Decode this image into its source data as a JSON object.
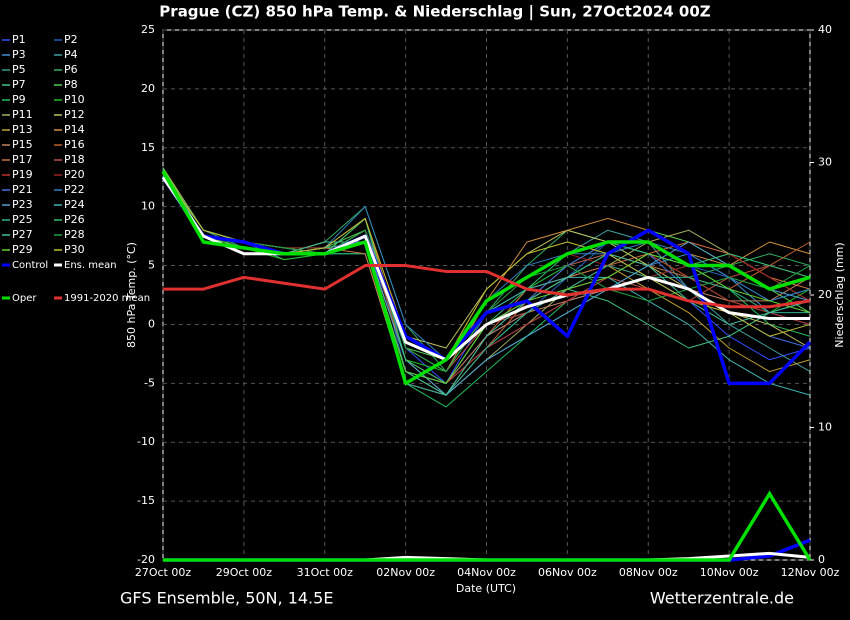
{
  "chart_data": {
    "type": "line",
    "title": "Prague  (CZ)  850 hPa Temp. & Niederschlag | Sun, 27Oct2024 00Z",
    "ylabel": "850 hPa Temp. (°C)",
    "y2label": "Niederschlag (mm)",
    "xlabel": "Date (UTC)",
    "source_left": "GFS Ensemble, 50N, 14.5E",
    "source_right": "Wetterzentrale.de",
    "grid": true,
    "xlim": [
      0,
      16
    ],
    "xticks": [
      {
        "value": 0,
        "label": "27Oct 00z"
      },
      {
        "value": 2,
        "label": "29Oct 00z"
      },
      {
        "value": 4,
        "label": "31Oct 00z"
      },
      {
        "value": 6,
        "label": "02Nov 00z"
      },
      {
        "value": 8,
        "label": "04Nov 00z"
      },
      {
        "value": 10,
        "label": "06Nov 00z"
      },
      {
        "value": 12,
        "label": "08Nov 00z"
      },
      {
        "value": 14,
        "label": "10Nov 00z"
      },
      {
        "value": 16,
        "label": "12Nov 00z"
      }
    ],
    "ylim": [
      -20,
      25
    ],
    "yticks": [
      -20,
      -15,
      -10,
      -5,
      0,
      5,
      10,
      15,
      20,
      25
    ],
    "y2lim": [
      0,
      40
    ],
    "y2ticks": [
      0,
      10,
      20,
      30,
      40
    ],
    "x": [
      0,
      1,
      2,
      3,
      4,
      5,
      6,
      7,
      8,
      9,
      10,
      11,
      12,
      13,
      14,
      15,
      16
    ],
    "series": [
      {
        "name": "P1",
        "color": "#3050ff",
        "values": [
          13,
          8,
          7,
          6,
          6,
          7,
          -2,
          -5,
          1,
          3,
          5,
          6,
          4,
          2,
          -1,
          -3,
          -2
        ]
      },
      {
        "name": "P2",
        "color": "#2060c0",
        "values": [
          12.5,
          7,
          6.5,
          6,
          6.5,
          9,
          -4,
          -5,
          -1,
          1,
          4,
          7,
          6,
          5,
          4,
          2,
          3
        ]
      },
      {
        "name": "P3",
        "color": "#3a8fd0",
        "values": [
          13,
          7.5,
          7,
          6.5,
          6,
          6,
          -5,
          -6,
          -2,
          0,
          2,
          3,
          5,
          6,
          4,
          1,
          0
        ]
      },
      {
        "name": "P4",
        "color": "#40a0a0",
        "values": [
          12.8,
          7,
          7,
          5.5,
          6,
          8,
          -1,
          -3,
          2,
          4,
          6,
          8,
          7,
          3,
          0,
          -2,
          -4
        ]
      },
      {
        "name": "P5",
        "color": "#30a090",
        "values": [
          13.2,
          8,
          6.5,
          6,
          6.5,
          7,
          -3,
          -6,
          -3,
          -1,
          1,
          3,
          4,
          5,
          6,
          5,
          4
        ]
      },
      {
        "name": "P6",
        "color": "#30b060",
        "values": [
          12.6,
          7,
          7,
          6,
          7,
          10,
          0,
          -4,
          1,
          5,
          8,
          7,
          5,
          4,
          5,
          6,
          5
        ]
      },
      {
        "name": "P7",
        "color": "#40c080",
        "values": [
          13,
          7.5,
          6.5,
          6,
          6,
          7,
          -4,
          -5,
          -2,
          1,
          3,
          2,
          0,
          -2,
          -1,
          1,
          2
        ]
      },
      {
        "name": "P8",
        "color": "#50d050",
        "values": [
          12.9,
          7,
          7,
          6.5,
          6.5,
          8,
          -2,
          -3,
          0,
          2,
          4,
          6,
          8,
          7,
          5,
          3,
          1
        ]
      },
      {
        "name": "P9",
        "color": "#20c060",
        "values": [
          13.1,
          8,
          7,
          6,
          6,
          6,
          -5,
          -7,
          -4,
          -1,
          2,
          4,
          6,
          5,
          3,
          0,
          -1
        ]
      },
      {
        "name": "P10",
        "color": "#20c020",
        "values": [
          13,
          7,
          6.5,
          5.5,
          6,
          9,
          -3,
          -4,
          1,
          3,
          5,
          7,
          6,
          4,
          2,
          1,
          3
        ]
      },
      {
        "name": "P11",
        "color": "#a0b060",
        "values": [
          12.7,
          7.5,
          7,
          6,
          6.5,
          7,
          -4,
          -6,
          -3,
          0,
          3,
          5,
          7,
          8,
          6,
          4,
          2
        ]
      },
      {
        "name": "P12",
        "color": "#c0c060",
        "values": [
          13.3,
          8,
          7,
          6.5,
          6,
          8,
          -1,
          -2,
          3,
          6,
          8,
          7,
          5,
          3,
          1,
          0,
          -2
        ]
      },
      {
        "name": "P13",
        "color": "#c0a030",
        "values": [
          13,
          7,
          7,
          6,
          7,
          7,
          -3,
          -5,
          0,
          2,
          4,
          5,
          3,
          1,
          -2,
          -4,
          -3
        ]
      },
      {
        "name": "P14",
        "color": "#d09040",
        "values": [
          12.8,
          7.5,
          6.5,
          6,
          6,
          9,
          -2,
          -4,
          2,
          7,
          8,
          9,
          8,
          6,
          5,
          7,
          6
        ]
      },
      {
        "name": "P15",
        "color": "#c08060",
        "values": [
          13,
          8,
          7,
          6,
          6.5,
          7,
          -4,
          -5,
          -1,
          1,
          2,
          3,
          4,
          3,
          2,
          2,
          4
        ]
      },
      {
        "name": "P16",
        "color": "#c06030",
        "values": [
          13.2,
          7,
          7,
          6.5,
          6,
          8,
          -3,
          -6,
          -2,
          2,
          5,
          6,
          5,
          4,
          3,
          5,
          7
        ]
      },
      {
        "name": "P17",
        "color": "#d07040",
        "values": [
          12.9,
          7.5,
          7,
          6,
          6.5,
          6,
          -5,
          -6,
          -1,
          3,
          4,
          5,
          6,
          7,
          6,
          4,
          3
        ]
      },
      {
        "name": "P18",
        "color": "#c05040",
        "values": [
          13,
          7,
          6.5,
          6,
          6,
          8,
          -2,
          -4,
          0,
          1,
          3,
          4,
          3,
          2,
          4,
          5,
          4
        ]
      },
      {
        "name": "P19",
        "color": "#c03030",
        "values": [
          13.1,
          8,
          7,
          6,
          6,
          7,
          -3,
          -5,
          -2,
          0,
          2,
          4,
          6,
          4,
          2,
          1,
          0
        ]
      },
      {
        "name": "P20",
        "color": "#a02020",
        "values": [
          12.7,
          7,
          7,
          6.5,
          6.5,
          9,
          -1,
          -3,
          1,
          4,
          6,
          5,
          4,
          5,
          6,
          4,
          2
        ]
      },
      {
        "name": "P21",
        "color": "#4070e0",
        "values": [
          13,
          7.5,
          6.5,
          6,
          6,
          7,
          -4,
          -5,
          0,
          2,
          5,
          7,
          6,
          3,
          1,
          -1,
          -2
        ]
      },
      {
        "name": "P22",
        "color": "#3080c0",
        "values": [
          12.8,
          8,
          7,
          6,
          6.5,
          10,
          0,
          -3,
          2,
          5,
          6,
          6,
          7,
          6,
          4,
          2,
          3
        ]
      },
      {
        "name": "P23",
        "color": "#50a0d0",
        "values": [
          13.2,
          7,
          7,
          6,
          6,
          7,
          -3,
          -6,
          -3,
          -1,
          1,
          3,
          5,
          7,
          5,
          3,
          2
        ]
      },
      {
        "name": "P24",
        "color": "#40b0b0",
        "values": [
          13,
          7.5,
          7,
          6.5,
          6,
          8,
          -2,
          -4,
          1,
          3,
          4,
          4,
          2,
          0,
          -3,
          -5,
          -6
        ]
      },
      {
        "name": "P25",
        "color": "#30b090",
        "values": [
          12.9,
          7,
          6.5,
          6,
          6.5,
          7,
          -5,
          -6,
          -2,
          1,
          3,
          5,
          4,
          4,
          3,
          1,
          1
        ]
      },
      {
        "name": "P26",
        "color": "#30c070",
        "values": [
          13.1,
          8,
          7,
          6,
          6,
          9,
          -3,
          -5,
          0,
          3,
          6,
          7,
          6,
          5,
          6,
          5,
          4
        ]
      },
      {
        "name": "P27",
        "color": "#40c0a0",
        "values": [
          12.6,
          7.5,
          7,
          6,
          7,
          7,
          -4,
          -6,
          -1,
          2,
          4,
          6,
          5,
          2,
          0,
          1,
          2
        ]
      },
      {
        "name": "P28",
        "color": "#20a040",
        "values": [
          13,
          7,
          7,
          6.5,
          6,
          8,
          -2,
          -4,
          1,
          4,
          5,
          3,
          2,
          3,
          4,
          3,
          5
        ]
      },
      {
        "name": "P29",
        "color": "#60d030",
        "values": [
          13.3,
          7.5,
          6.5,
          6,
          6,
          7,
          -4,
          -5,
          0,
          2,
          3,
          4,
          6,
          5,
          3,
          2,
          1
        ]
      },
      {
        "name": "P30",
        "color": "#c0c030",
        "values": [
          12.8,
          8,
          7,
          6,
          6.5,
          9,
          -1,
          -3,
          3,
          6,
          7,
          6,
          4,
          2,
          1,
          -1,
          0
        ]
      },
      {
        "name": "Control",
        "color": "#0000ff",
        "width": 3.5,
        "values": [
          12.5,
          7.5,
          7,
          6,
          6,
          7.5,
          -1,
          -3,
          1,
          2,
          -1,
          6,
          8,
          6,
          -5,
          -5,
          -1.5
        ],
        "precip": [
          0,
          0,
          0,
          0,
          0,
          0,
          0,
          0,
          0,
          0,
          0,
          0,
          0,
          0,
          0,
          0.3,
          1.5
        ]
      },
      {
        "name": "Ens. mean",
        "color": "#ffffff",
        "width": 3,
        "values": [
          12.5,
          7.5,
          6,
          6,
          6,
          7.5,
          -1.5,
          -3,
          0,
          1.5,
          2.5,
          3,
          4,
          3,
          1,
          0.5,
          0.5
        ],
        "precip": [
          0,
          0,
          0,
          0,
          0,
          0,
          0.2,
          0.1,
          0,
          0,
          0,
          0,
          0,
          0.1,
          0.3,
          0.5,
          0.2
        ]
      },
      {
        "name": "Oper",
        "color": "#00e000",
        "width": 3.5,
        "values": [
          13,
          7,
          6.5,
          6,
          6,
          7,
          -5,
          -3,
          2,
          4,
          6,
          7,
          7,
          5,
          5,
          3,
          4
        ],
        "precip": [
          0,
          0,
          0,
          0,
          0,
          0,
          0,
          0,
          0,
          0,
          0,
          0,
          0,
          0,
          0,
          5,
          0
        ]
      },
      {
        "name": "1991-2020 mean",
        "color": "#e03030",
        "width": 3,
        "values": [
          3,
          3,
          4,
          3.5,
          3,
          5,
          5,
          4.5,
          4.5,
          3,
          2.5,
          3,
          3,
          2,
          1.5,
          1.5,
          2
        ]
      }
    ]
  }
}
